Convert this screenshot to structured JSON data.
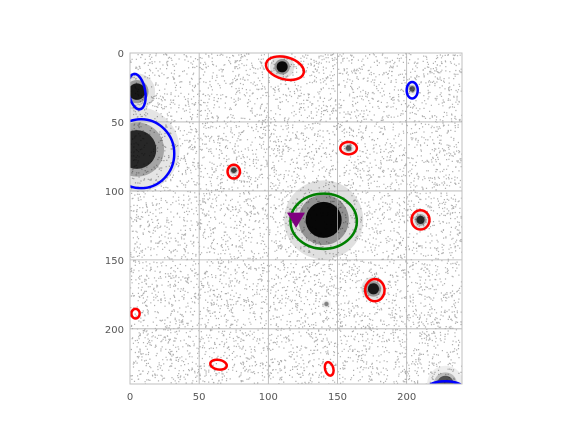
{
  "chart_data": {
    "type": "scatter",
    "title": "",
    "xlabel": "",
    "ylabel": "",
    "xlim": [
      0,
      240
    ],
    "ylim": [
      240,
      0
    ],
    "x_ticks": [
      0,
      50,
      100,
      150,
      200
    ],
    "y_ticks": [
      0,
      50,
      100,
      150,
      200
    ],
    "grid": true,
    "background": "astronomical-noise-image",
    "sources": [
      {
        "x": 110,
        "y": 10,
        "r": 4,
        "intensity": 1.0
      },
      {
        "x": 5,
        "y": 28,
        "r": 6,
        "intensity": 0.9
      },
      {
        "x": 204,
        "y": 26,
        "r": 2,
        "intensity": 0.6
      },
      {
        "x": 5,
        "y": 70,
        "r": 14,
        "intensity": 0.8
      },
      {
        "x": 158,
        "y": 69,
        "r": 2,
        "intensity": 0.6
      },
      {
        "x": 75,
        "y": 85,
        "r": 2,
        "intensity": 0.7
      },
      {
        "x": 140,
        "y": 121,
        "r": 13,
        "intensity": 1.0
      },
      {
        "x": 210,
        "y": 121,
        "r": 3,
        "intensity": 0.8
      },
      {
        "x": 176,
        "y": 171,
        "r": 4,
        "intensity": 0.9
      },
      {
        "x": 142,
        "y": 182,
        "r": 1.5,
        "intensity": 0.4
      },
      {
        "x": 228,
        "y": 240,
        "r": 6,
        "intensity": 0.6
      }
    ],
    "ellipses": [
      {
        "x": 112,
        "y": 11,
        "rx": 14,
        "ry": 8,
        "angle": 15,
        "color": "#ff0000"
      },
      {
        "x": 5,
        "y": 28,
        "rx": 6,
        "ry": 13,
        "angle": -10,
        "color": "#0000ff"
      },
      {
        "x": 204,
        "y": 27,
        "rx": 4,
        "ry": 6,
        "angle": 0,
        "color": "#0000ff"
      },
      {
        "x": 8,
        "y": 73,
        "rx": 24,
        "ry": 25,
        "angle": 0,
        "color": "#0000ff"
      },
      {
        "x": 158,
        "y": 69,
        "rx": 6,
        "ry": 4.5,
        "angle": 0,
        "color": "#ff0000"
      },
      {
        "x": 75,
        "y": 86,
        "rx": 4.5,
        "ry": 5,
        "angle": 0,
        "color": "#ff0000"
      },
      {
        "x": 140,
        "y": 122,
        "rx": 24,
        "ry": 20,
        "angle": 0,
        "color": "#008000"
      },
      {
        "x": 210,
        "y": 121,
        "rx": 6.5,
        "ry": 7,
        "angle": 0,
        "color": "#ff0000"
      },
      {
        "x": 177,
        "y": 172,
        "rx": 7,
        "ry": 8,
        "angle": 0,
        "color": "#ff0000"
      },
      {
        "x": 4,
        "y": 189,
        "rx": 3,
        "ry": 3.5,
        "angle": 0,
        "color": "#ff0000"
      },
      {
        "x": 64,
        "y": 226,
        "rx": 6,
        "ry": 3.5,
        "angle": 10,
        "color": "#ff0000"
      },
      {
        "x": 144,
        "y": 229,
        "rx": 3,
        "ry": 5,
        "angle": -15,
        "color": "#ff0000"
      },
      {
        "x": 228,
        "y": 243,
        "rx": 13,
        "ry": 5,
        "angle": 0,
        "color": "#0000ff"
      }
    ],
    "markers": [
      {
        "x": 120,
        "y": 121,
        "shape": "triangle-down",
        "color": "#800080"
      }
    ]
  }
}
